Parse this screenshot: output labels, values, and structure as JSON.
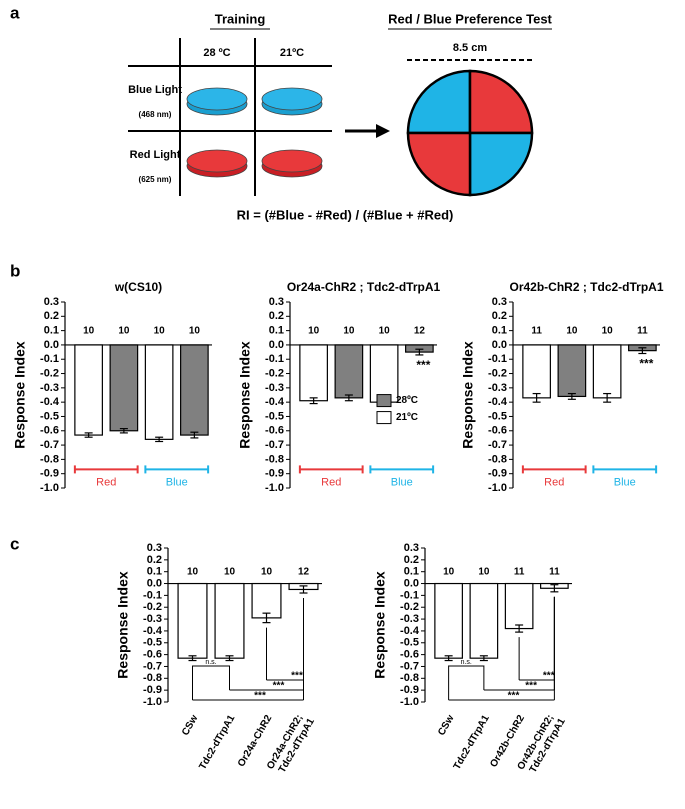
{
  "panel_labels": [
    "a",
    "b",
    "c"
  ],
  "panel_a": {
    "training_title": "Training",
    "col_headers": [
      "28 ºC",
      "21ºC"
    ],
    "rows": [
      {
        "label": "Blue Light",
        "wavelength": "(468 nm)"
      },
      {
        "label": "Red Light",
        "wavelength": "(625 nm)"
      }
    ],
    "test_title": "Red / Blue Preference Test",
    "dish_size": "8.5 cm",
    "formula": "RI = (#Blue - #Red) / (#Blue + #Red)"
  },
  "chart_data": [
    {
      "type": "bar",
      "title": "w(CS10)",
      "ylabel": "Response Index",
      "ylim": [
        -1.0,
        0.3
      ],
      "yticks": [
        0.3,
        0.2,
        0.1,
        {
          "value": 0,
          "label": "0.0"
        },
        -0.1,
        -0.2,
        -0.3,
        -0.4,
        -0.5,
        -0.6,
        -0.7,
        -0.8,
        -0.9,
        {
          "value": -1,
          "label": "-1.0"
        }
      ],
      "categories": [
        "Red",
        "Blue"
      ],
      "category_colors": [
        "#e8393b",
        "#1fb4e6"
      ],
      "series": [
        {
          "name": "21ºC",
          "color": "#ffffff",
          "values": [
            -0.63,
            -0.66
          ],
          "errors": [
            0.015,
            0.015
          ],
          "n": [
            10,
            10
          ]
        },
        {
          "name": "28ºC",
          "color": "#808080",
          "values": [
            -0.6,
            -0.63
          ],
          "errors": [
            0.015,
            0.02
          ],
          "n": [
            10,
            10
          ]
        }
      ]
    },
    {
      "type": "bar",
      "title": "Or24a-ChR2 ; Tdc2-dTrpA1",
      "ylabel": "Response Index",
      "ylim": [
        -1.0,
        0.3
      ],
      "yticks": [
        0.3,
        0.2,
        0.1,
        {
          "value": 0,
          "label": "0.0"
        },
        -0.1,
        -0.2,
        -0.3,
        -0.4,
        -0.5,
        -0.6,
        -0.7,
        -0.8,
        -0.9,
        {
          "value": -1,
          "label": "-1.0"
        }
      ],
      "categories": [
        "Red",
        "Blue"
      ],
      "category_colors": [
        "#e8393b",
        "#1fb4e6"
      ],
      "legend": "center right",
      "series": [
        {
          "name": "21ºC",
          "color": "#ffffff",
          "values": [
            -0.39,
            -0.4
          ],
          "errors": [
            0.02,
            0.02
          ],
          "n": [
            10,
            10
          ]
        },
        {
          "name": "28ºC",
          "color": "#808080",
          "values": [
            -0.37,
            -0.05
          ],
          "errors": [
            0.02,
            0.02
          ],
          "n": [
            10,
            12
          ],
          "sig": [
            null,
            "***"
          ]
        }
      ]
    },
    {
      "type": "bar",
      "title": "Or42b-ChR2 ; Tdc2-dTrpA1",
      "ylabel": "Response Index",
      "ylim": [
        -1.0,
        0.3
      ],
      "yticks": [
        0.3,
        0.2,
        0.1,
        {
          "value": 0,
          "label": "0.0"
        },
        -0.1,
        -0.2,
        -0.3,
        -0.4,
        -0.5,
        -0.6,
        -0.7,
        -0.8,
        -0.9,
        {
          "value": -1,
          "label": "-1.0"
        }
      ],
      "categories": [
        "Red",
        "Blue"
      ],
      "category_colors": [
        "#e8393b",
        "#1fb4e6"
      ],
      "series": [
        {
          "name": "21ºC",
          "color": "#ffffff",
          "values": [
            -0.37,
            -0.37
          ],
          "errors": [
            0.03,
            0.03
          ],
          "n": [
            11,
            10
          ]
        },
        {
          "name": "28ºC",
          "color": "#808080",
          "values": [
            -0.36,
            -0.04
          ],
          "errors": [
            0.02,
            0.02
          ],
          "n": [
            10,
            11
          ],
          "sig": [
            null,
            "***"
          ]
        }
      ]
    },
    {
      "type": "bar",
      "ylabel": "Response Index",
      "ylim": [
        -1.0,
        0.3
      ],
      "yticks": [
        0.3,
        0.2,
        0.1,
        {
          "value": 0,
          "label": "0.0"
        },
        -0.1,
        -0.2,
        -0.3,
        -0.4,
        -0.5,
        -0.6,
        -0.7,
        -0.8,
        -0.9,
        {
          "value": -1,
          "label": "-1.0"
        }
      ],
      "categories": [
        "CSw",
        "Tdc2-dTrpA1",
        "Or24a-ChR2",
        "Or24a-ChR2; Tdc2-dTrpA1"
      ],
      "color": "#ffffff",
      "values": [
        -0.63,
        -0.63,
        -0.29,
        -0.05
      ],
      "errors": [
        0.02,
        0.02,
        0.04,
        0.03
      ],
      "n": [
        10,
        10,
        10,
        12
      ],
      "comparisons": [
        {
          "pair": [
            0,
            1
          ],
          "label": "n.s."
        },
        {
          "pair": [
            2,
            3
          ],
          "label": "***"
        },
        {
          "pair": [
            1,
            3
          ],
          "label": "***"
        },
        {
          "pair": [
            0,
            3
          ],
          "label": "***"
        }
      ]
    },
    {
      "type": "bar",
      "ylabel": "Response Index",
      "ylim": [
        -1.0,
        0.3
      ],
      "yticks": [
        0.3,
        0.2,
        0.1,
        {
          "value": 0,
          "label": "0.0"
        },
        -0.1,
        -0.2,
        -0.3,
        -0.4,
        -0.5,
        -0.6,
        -0.7,
        -0.8,
        -0.9,
        {
          "value": -1,
          "label": "-1.0"
        }
      ],
      "categories": [
        "CSw",
        "Tdc2-dTrpA1",
        "Or42b-ChR2",
        "Or42b-ChR2; Tdc2-dTrpA1"
      ],
      "color": "#ffffff",
      "values": [
        -0.63,
        -0.63,
        -0.38,
        -0.04
      ],
      "errors": [
        0.02,
        0.02,
        0.03,
        0.03
      ],
      "n": [
        10,
        10,
        11,
        11
      ],
      "comparisons": [
        {
          "pair": [
            0,
            1
          ],
          "label": "n.s."
        },
        {
          "pair": [
            2,
            3
          ],
          "label": "***"
        },
        {
          "pair": [
            1,
            3
          ],
          "label": "***"
        },
        {
          "pair": [
            0,
            3
          ],
          "label": "***"
        }
      ]
    }
  ]
}
